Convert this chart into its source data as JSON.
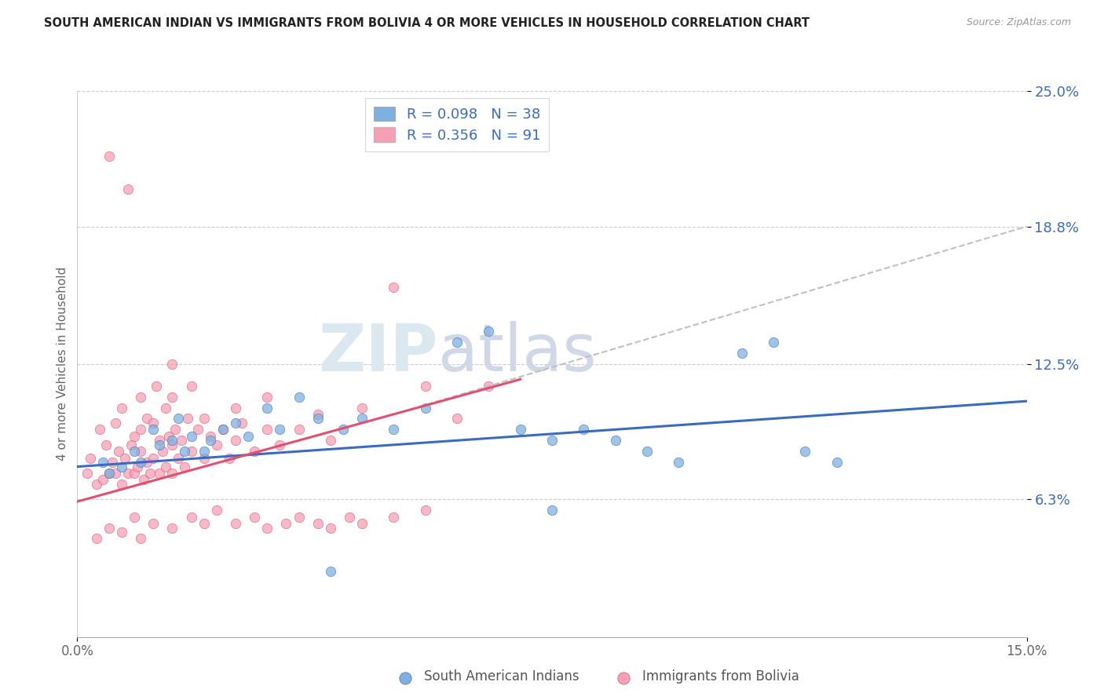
{
  "title": "SOUTH AMERICAN INDIAN VS IMMIGRANTS FROM BOLIVIA 4 OR MORE VEHICLES IN HOUSEHOLD CORRELATION CHART",
  "source": "Source: ZipAtlas.com",
  "ylabel": "4 or more Vehicles in Household",
  "xlim": [
    0.0,
    15.0
  ],
  "ylim": [
    0.0,
    25.0
  ],
  "yticks": [
    6.3,
    12.5,
    18.8,
    25.0
  ],
  "ytick_labels": [
    "6.3%",
    "12.5%",
    "18.8%",
    "25.0%"
  ],
  "xtick_labels": [
    "0.0%",
    "15.0%"
  ],
  "blue_color": "#7eb0e0",
  "pink_color": "#f5a0b5",
  "pink_line_color": "#e05070",
  "blue_line_color": "#3a6bbf",
  "watermark_1": "ZIP",
  "watermark_2": "atlas",
  "blue_scatter": [
    [
      0.4,
      8.0
    ],
    [
      0.5,
      7.5
    ],
    [
      0.7,
      7.8
    ],
    [
      0.9,
      8.5
    ],
    [
      1.0,
      8.0
    ],
    [
      1.2,
      9.5
    ],
    [
      1.3,
      8.8
    ],
    [
      1.5,
      9.0
    ],
    [
      1.6,
      10.0
    ],
    [
      1.7,
      8.5
    ],
    [
      1.8,
      9.2
    ],
    [
      2.0,
      8.5
    ],
    [
      2.1,
      9.0
    ],
    [
      2.3,
      9.5
    ],
    [
      2.5,
      9.8
    ],
    [
      2.7,
      9.2
    ],
    [
      3.0,
      10.5
    ],
    [
      3.2,
      9.5
    ],
    [
      3.5,
      11.0
    ],
    [
      3.8,
      10.0
    ],
    [
      4.2,
      9.5
    ],
    [
      4.5,
      10.0
    ],
    [
      5.0,
      9.5
    ],
    [
      5.5,
      10.5
    ],
    [
      6.0,
      13.5
    ],
    [
      6.5,
      14.0
    ],
    [
      7.0,
      9.5
    ],
    [
      7.5,
      9.0
    ],
    [
      8.0,
      9.5
    ],
    [
      8.5,
      9.0
    ],
    [
      9.0,
      8.5
    ],
    [
      9.5,
      8.0
    ],
    [
      10.5,
      13.0
    ],
    [
      11.0,
      13.5
    ],
    [
      11.5,
      8.5
    ],
    [
      12.0,
      8.0
    ],
    [
      4.0,
      3.0
    ],
    [
      7.5,
      5.8
    ]
  ],
  "pink_scatter": [
    [
      0.15,
      7.5
    ],
    [
      0.2,
      8.2
    ],
    [
      0.3,
      7.0
    ],
    [
      0.35,
      9.5
    ],
    [
      0.4,
      7.2
    ],
    [
      0.45,
      8.8
    ],
    [
      0.5,
      7.5
    ],
    [
      0.5,
      22.0
    ],
    [
      0.55,
      8.0
    ],
    [
      0.6,
      7.5
    ],
    [
      0.6,
      9.8
    ],
    [
      0.65,
      8.5
    ],
    [
      0.7,
      7.0
    ],
    [
      0.7,
      10.5
    ],
    [
      0.75,
      8.2
    ],
    [
      0.8,
      7.5
    ],
    [
      0.8,
      20.5
    ],
    [
      0.85,
      8.8
    ],
    [
      0.9,
      7.5
    ],
    [
      0.9,
      9.2
    ],
    [
      0.95,
      7.8
    ],
    [
      1.0,
      8.5
    ],
    [
      1.0,
      9.5
    ],
    [
      1.0,
      11.0
    ],
    [
      1.05,
      7.2
    ],
    [
      1.1,
      8.0
    ],
    [
      1.1,
      10.0
    ],
    [
      1.15,
      7.5
    ],
    [
      1.2,
      8.2
    ],
    [
      1.2,
      9.8
    ],
    [
      1.25,
      11.5
    ],
    [
      1.3,
      7.5
    ],
    [
      1.3,
      9.0
    ],
    [
      1.35,
      8.5
    ],
    [
      1.4,
      7.8
    ],
    [
      1.4,
      10.5
    ],
    [
      1.45,
      9.2
    ],
    [
      1.5,
      7.5
    ],
    [
      1.5,
      8.8
    ],
    [
      1.5,
      11.0
    ],
    [
      1.5,
      12.5
    ],
    [
      1.55,
      9.5
    ],
    [
      1.6,
      8.2
    ],
    [
      1.65,
      9.0
    ],
    [
      1.7,
      7.8
    ],
    [
      1.75,
      10.0
    ],
    [
      1.8,
      8.5
    ],
    [
      1.8,
      11.5
    ],
    [
      1.9,
      9.5
    ],
    [
      2.0,
      8.2
    ],
    [
      2.0,
      10.0
    ],
    [
      2.1,
      9.2
    ],
    [
      2.2,
      8.8
    ],
    [
      2.3,
      9.5
    ],
    [
      2.4,
      8.2
    ],
    [
      2.5,
      9.0
    ],
    [
      2.5,
      10.5
    ],
    [
      2.6,
      9.8
    ],
    [
      2.8,
      8.5
    ],
    [
      3.0,
      9.5
    ],
    [
      3.0,
      11.0
    ],
    [
      3.2,
      8.8
    ],
    [
      3.5,
      9.5
    ],
    [
      3.8,
      10.2
    ],
    [
      4.0,
      9.0
    ],
    [
      4.5,
      10.5
    ],
    [
      5.0,
      16.0
    ],
    [
      5.5,
      11.5
    ],
    [
      6.0,
      10.0
    ],
    [
      6.5,
      11.5
    ],
    [
      0.3,
      4.5
    ],
    [
      0.5,
      5.0
    ],
    [
      0.7,
      4.8
    ],
    [
      0.9,
      5.5
    ],
    [
      1.0,
      4.5
    ],
    [
      1.2,
      5.2
    ],
    [
      1.5,
      5.0
    ],
    [
      1.8,
      5.5
    ],
    [
      2.0,
      5.2
    ],
    [
      2.2,
      5.8
    ],
    [
      2.5,
      5.2
    ],
    [
      2.8,
      5.5
    ],
    [
      3.0,
      5.0
    ],
    [
      3.3,
      5.2
    ],
    [
      3.5,
      5.5
    ],
    [
      3.8,
      5.2
    ],
    [
      4.0,
      5.0
    ],
    [
      4.3,
      5.5
    ],
    [
      4.5,
      5.2
    ],
    [
      5.0,
      5.5
    ],
    [
      5.5,
      5.8
    ]
  ],
  "blue_line": {
    "x0": 0.0,
    "x1": 15.0,
    "y0": 7.8,
    "y1": 10.8
  },
  "pink_line": {
    "x0": 0.0,
    "x1": 7.0,
    "y0": 6.2,
    "y1": 11.8
  },
  "gray_dash_line": {
    "x0": 5.0,
    "x1": 15.0,
    "y0": 10.2,
    "y1": 18.8
  }
}
